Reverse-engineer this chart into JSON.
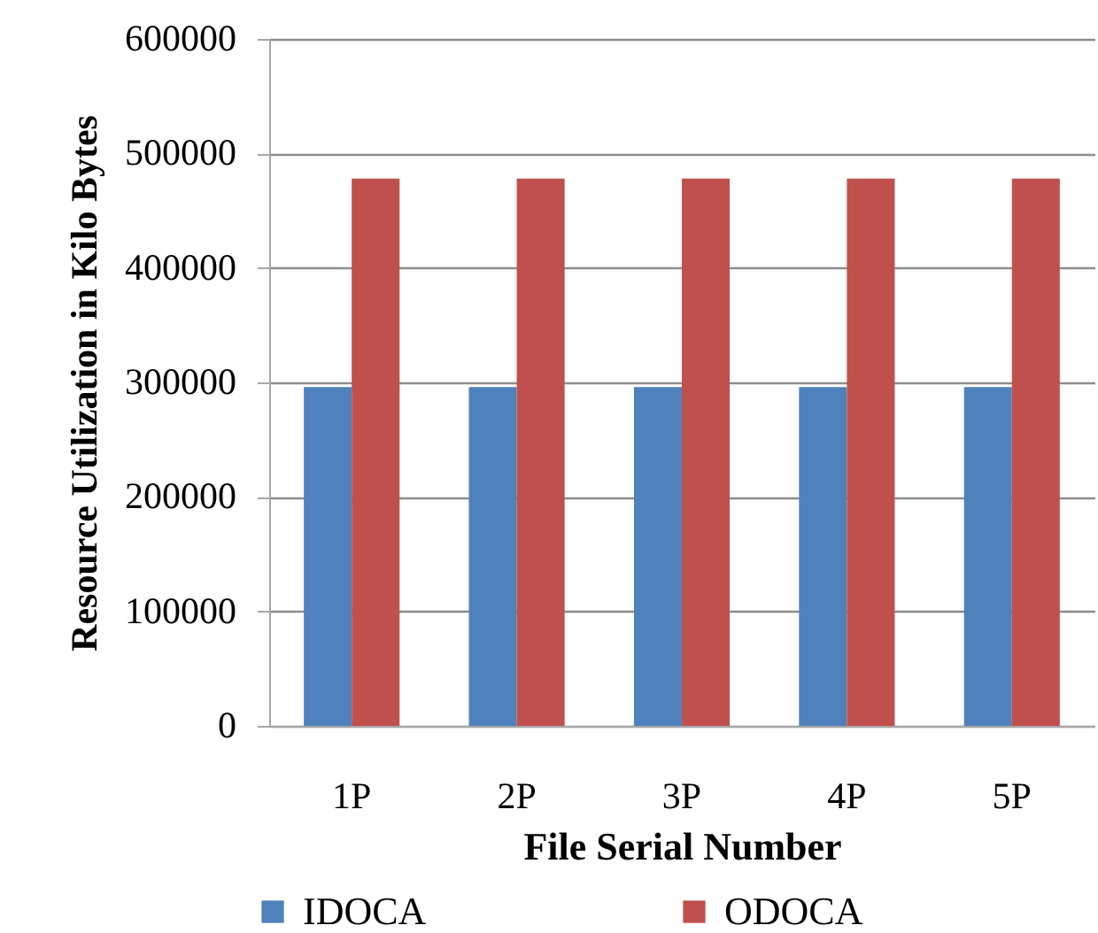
{
  "chart_data": {
    "type": "bar",
    "xlabel": "File Serial Number",
    "ylabel": "Resource Utilization in Kilo Bytes",
    "categories": [
      "1P",
      "2P",
      "3P",
      "4P",
      "5P"
    ],
    "series": [
      {
        "name": "IDOCA",
        "color": "#4f81bd",
        "values": [
          296000,
          296000,
          296000,
          296000,
          296000
        ]
      },
      {
        "name": "ODOCA",
        "color": "#c0504d",
        "values": [
          478000,
          478000,
          478000,
          478000,
          478000
        ]
      }
    ],
    "ylim": [
      0,
      600000
    ],
    "yticks": [
      0,
      100000,
      200000,
      300000,
      400000,
      500000,
      600000
    ],
    "grid": "y",
    "legend": "bottom"
  }
}
